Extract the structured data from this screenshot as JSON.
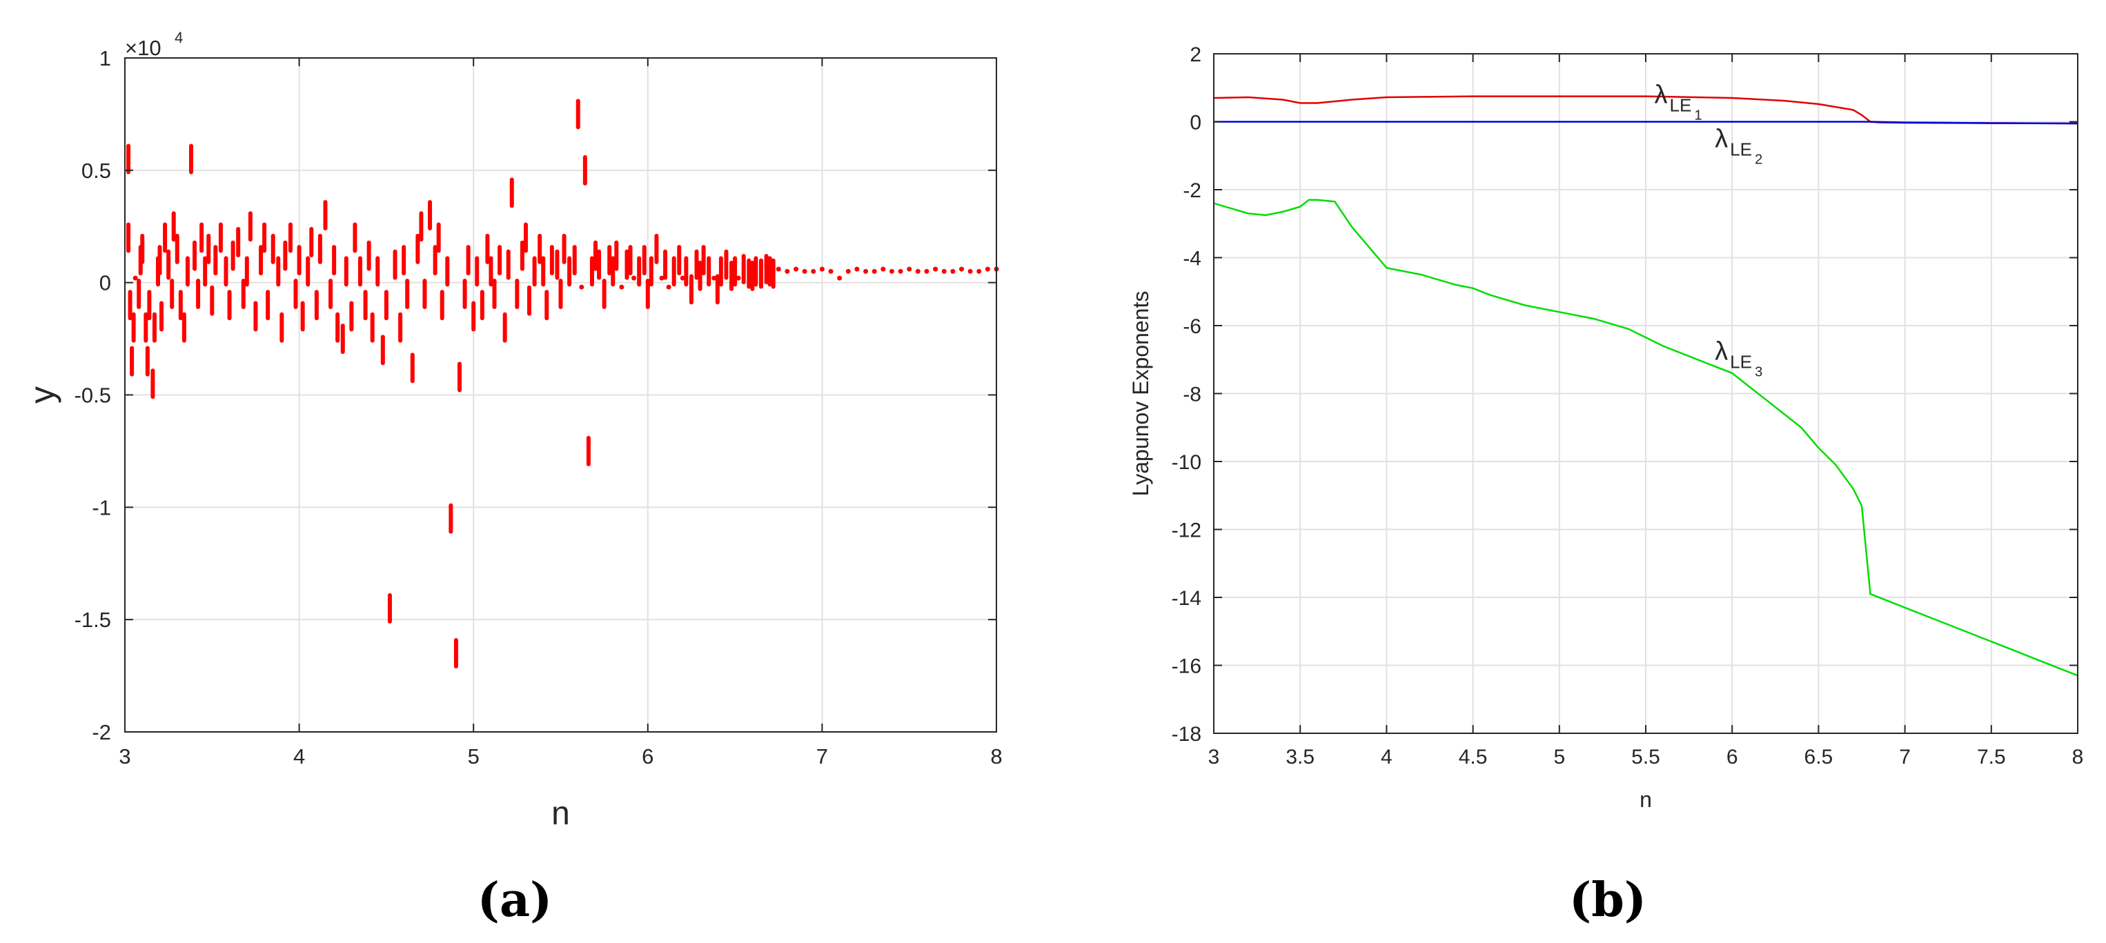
{
  "chart_data": [
    {
      "id": "a",
      "type": "scatter",
      "caption": "(a)",
      "xlabel": "n",
      "ylabel": "y",
      "exponent_label": "×10",
      "exponent_power": "4",
      "xlim": [
        3,
        8
      ],
      "ylim": [
        -2,
        1
      ],
      "xticks": [
        3,
        4,
        5,
        6,
        7,
        8
      ],
      "yticks": [
        -2,
        -1.5,
        -1,
        -0.5,
        0,
        0.5,
        1
      ],
      "ytick_labels": [
        "-2",
        "-1.5",
        "-1",
        "-0.5",
        "0",
        "0.5",
        "1"
      ],
      "grid": true,
      "color": "#ff0000",
      "points": [
        [
          3.02,
          0.55
        ],
        [
          3.02,
          0.2
        ],
        [
          3.03,
          -0.1
        ],
        [
          3.04,
          -0.35
        ],
        [
          3.05,
          -0.2
        ],
        [
          3.06,
          0.02
        ],
        [
          3.08,
          -0.05
        ],
        [
          3.09,
          0.1
        ],
        [
          3.1,
          0.15
        ],
        [
          3.12,
          -0.2
        ],
        [
          3.13,
          -0.35
        ],
        [
          3.14,
          -0.1
        ],
        [
          3.16,
          -0.45
        ],
        [
          3.17,
          -0.2
        ],
        [
          3.19,
          0.05
        ],
        [
          3.2,
          0.1
        ],
        [
          3.21,
          -0.15
        ],
        [
          3.23,
          0.2
        ],
        [
          3.25,
          0.08
        ],
        [
          3.27,
          -0.05
        ],
        [
          3.28,
          0.25
        ],
        [
          3.3,
          0.15
        ],
        [
          3.32,
          -0.1
        ],
        [
          3.34,
          -0.2
        ],
        [
          3.36,
          0.05
        ],
        [
          3.38,
          0.55
        ],
        [
          3.4,
          0.12
        ],
        [
          3.42,
          -0.05
        ],
        [
          3.44,
          0.2
        ],
        [
          3.46,
          0.05
        ],
        [
          3.48,
          0.15
        ],
        [
          3.5,
          -0.08
        ],
        [
          3.52,
          0.1
        ],
        [
          3.55,
          0.2
        ],
        [
          3.58,
          0.05
        ],
        [
          3.6,
          -0.1
        ],
        [
          3.62,
          0.12
        ],
        [
          3.65,
          0.18
        ],
        [
          3.68,
          -0.05
        ],
        [
          3.7,
          0.05
        ],
        [
          3.72,
          0.25
        ],
        [
          3.75,
          -0.15
        ],
        [
          3.78,
          0.1
        ],
        [
          3.8,
          0.2
        ],
        [
          3.82,
          -0.1
        ],
        [
          3.85,
          0.15
        ],
        [
          3.88,
          0.05
        ],
        [
          3.9,
          -0.2
        ],
        [
          3.92,
          0.12
        ],
        [
          3.95,
          0.2
        ],
        [
          3.98,
          -0.05
        ],
        [
          4.0,
          0.1
        ],
        [
          4.02,
          -0.15
        ],
        [
          4.05,
          0.05
        ],
        [
          4.07,
          0.18
        ],
        [
          4.1,
          -0.1
        ],
        [
          4.12,
          0.15
        ],
        [
          4.15,
          0.3
        ],
        [
          4.18,
          -0.05
        ],
        [
          4.2,
          0.1
        ],
        [
          4.22,
          -0.2
        ],
        [
          4.25,
          -0.25
        ],
        [
          4.27,
          0.05
        ],
        [
          4.3,
          -0.15
        ],
        [
          4.32,
          0.2
        ],
        [
          4.35,
          0.05
        ],
        [
          4.38,
          -0.1
        ],
        [
          4.4,
          0.12
        ],
        [
          4.42,
          -0.2
        ],
        [
          4.45,
          0.05
        ],
        [
          4.48,
          -0.3
        ],
        [
          4.5,
          -0.1
        ],
        [
          4.52,
          -1.45
        ],
        [
          4.55,
          0.08
        ],
        [
          4.58,
          -0.2
        ],
        [
          4.6,
          0.1
        ],
        [
          4.62,
          -0.05
        ],
        [
          4.65,
          -0.38
        ],
        [
          4.68,
          0.15
        ],
        [
          4.7,
          0.25
        ],
        [
          4.72,
          -0.05
        ],
        [
          4.75,
          0.3
        ],
        [
          4.78,
          0.1
        ],
        [
          4.8,
          0.2
        ],
        [
          4.82,
          -0.1
        ],
        [
          4.85,
          0.05
        ],
        [
          4.87,
          -1.05
        ],
        [
          4.9,
          -1.65
        ],
        [
          4.92,
          -0.42
        ],
        [
          4.95,
          -0.05
        ],
        [
          4.97,
          0.1
        ],
        [
          5.0,
          -0.15
        ],
        [
          5.02,
          0.05
        ],
        [
          5.05,
          -0.1
        ],
        [
          5.08,
          0.15
        ],
        [
          5.1,
          0.05
        ],
        [
          5.12,
          -0.05
        ],
        [
          5.15,
          0.1
        ],
        [
          5.18,
          -0.2
        ],
        [
          5.2,
          0.08
        ],
        [
          5.22,
          0.4
        ],
        [
          5.25,
          -0.05
        ],
        [
          5.28,
          0.12
        ],
        [
          5.3,
          0.2
        ],
        [
          5.32,
          -0.08
        ],
        [
          5.35,
          0.05
        ],
        [
          5.38,
          0.15
        ],
        [
          5.4,
          0.05
        ],
        [
          5.42,
          -0.1
        ],
        [
          5.45,
          0.1
        ],
        [
          5.48,
          0.08
        ],
        [
          5.5,
          -0.05
        ],
        [
          5.52,
          0.15
        ],
        [
          5.55,
          0.05
        ],
        [
          5.58,
          0.1
        ],
        [
          5.6,
          0.75
        ],
        [
          5.62,
          -0.02
        ],
        [
          5.64,
          0.5
        ],
        [
          5.66,
          -0.75
        ],
        [
          5.68,
          0.05
        ],
        [
          5.7,
          0.12
        ],
        [
          5.72,
          0.08
        ],
        [
          5.75,
          -0.05
        ],
        [
          5.78,
          0.1
        ],
        [
          5.8,
          0.05
        ],
        [
          5.82,
          0.12
        ],
        [
          5.85,
          -0.02
        ],
        [
          5.88,
          0.08
        ],
        [
          5.9,
          0.1
        ],
        [
          5.92,
          0.02
        ],
        [
          5.95,
          0.05
        ],
        [
          5.98,
          0.1
        ],
        [
          6.0,
          -0.05
        ],
        [
          6.02,
          0.05
        ],
        [
          6.05,
          0.15
        ],
        [
          6.08,
          0.02
        ],
        [
          6.1,
          0.08
        ],
        [
          6.12,
          -0.02
        ],
        [
          6.15,
          0.05
        ],
        [
          6.18,
          0.1
        ],
        [
          6.2,
          0.02
        ],
        [
          6.22,
          0.05
        ],
        [
          6.25,
          -0.03
        ],
        [
          6.28,
          0.08
        ],
        [
          6.3,
          0.03
        ],
        [
          6.32,
          0.1
        ],
        [
          6.35,
          0.05
        ],
        [
          6.38,
          0.02
        ],
        [
          6.4,
          -0.03
        ],
        [
          6.42,
          0.05
        ],
        [
          6.45,
          0.08
        ],
        [
          6.48,
          0.03
        ],
        [
          6.5,
          0.05
        ],
        [
          6.52,
          0.02
        ],
        [
          6.55,
          0.06
        ],
        [
          6.58,
          0.04
        ],
        [
          6.6,
          0.03
        ],
        [
          6.62,
          0.05
        ],
        [
          6.65,
          0.04
        ],
        [
          6.68,
          0.06
        ],
        [
          6.7,
          0.05
        ],
        [
          6.72,
          0.04
        ],
        [
          6.75,
          0.06
        ],
        [
          6.8,
          0.05
        ],
        [
          6.85,
          0.06
        ],
        [
          6.9,
          0.05
        ],
        [
          6.95,
          0.05
        ],
        [
          7.0,
          0.06
        ],
        [
          7.05,
          0.05
        ],
        [
          7.1,
          0.02
        ],
        [
          7.15,
          0.05
        ],
        [
          7.2,
          0.06
        ],
        [
          7.25,
          0.05
        ],
        [
          7.3,
          0.05
        ],
        [
          7.35,
          0.06
        ],
        [
          7.4,
          0.05
        ],
        [
          7.45,
          0.05
        ],
        [
          7.5,
          0.06
        ],
        [
          7.55,
          0.05
        ],
        [
          7.6,
          0.05
        ],
        [
          7.65,
          0.06
        ],
        [
          7.7,
          0.05
        ],
        [
          7.75,
          0.05
        ],
        [
          7.8,
          0.06
        ],
        [
          7.85,
          0.05
        ],
        [
          7.9,
          0.05
        ],
        [
          7.95,
          0.06
        ],
        [
          8.0,
          0.06
        ]
      ]
    },
    {
      "id": "b",
      "type": "line",
      "caption": "(b)",
      "xlabel": "n",
      "ylabel": "Lyapunov Exponents",
      "xlim": [
        3,
        8
      ],
      "ylim": [
        -18,
        2
      ],
      "xticks": [
        3,
        3.5,
        4,
        4.5,
        5,
        5.5,
        6,
        6.5,
        7,
        7.5,
        8
      ],
      "xtick_labels": [
        "3",
        "3.5",
        "4",
        "4.5",
        "5",
        "5.5",
        "6",
        "6.5",
        "7",
        "7.5",
        "8"
      ],
      "yticks": [
        -18,
        -16,
        -14,
        -12,
        -10,
        -8,
        -6,
        -4,
        -2,
        0,
        2
      ],
      "ytick_labels": [
        "-18",
        "-16",
        "-14",
        "-12",
        "-10",
        "-8",
        "-6",
        "-4",
        "-2",
        "0",
        "2"
      ],
      "grid": true,
      "series": [
        {
          "label_main": "λ",
          "label_sub": "LE",
          "label_subsub": "1",
          "color": "#e00000",
          "x": [
            3.0,
            3.2,
            3.4,
            3.5,
            3.6,
            3.8,
            4.0,
            4.5,
            5.0,
            5.5,
            6.0,
            6.3,
            6.5,
            6.7,
            6.75,
            6.8,
            6.85,
            7.0,
            8.0
          ],
          "y": [
            0.7,
            0.72,
            0.65,
            0.55,
            0.55,
            0.65,
            0.72,
            0.75,
            0.75,
            0.75,
            0.7,
            0.62,
            0.52,
            0.35,
            0.2,
            0.0,
            -0.02,
            -0.03,
            -0.05
          ]
        },
        {
          "label_main": "λ",
          "label_sub": "LE",
          "label_subsub": "2",
          "color": "#0000e0",
          "x": [
            3.0,
            4.0,
            5.0,
            6.0,
            6.8,
            7.0,
            7.5,
            8.0
          ],
          "y": [
            0.0,
            0.0,
            0.0,
            0.0,
            0.0,
            -0.02,
            -0.04,
            -0.05
          ]
        },
        {
          "label_main": "λ",
          "label_sub": "LE",
          "label_subsub": "3",
          "color": "#00dd00",
          "x": [
            3.0,
            3.1,
            3.2,
            3.3,
            3.4,
            3.5,
            3.55,
            3.6,
            3.7,
            3.8,
            3.9,
            4.0,
            4.2,
            4.4,
            4.5,
            4.6,
            4.8,
            5.0,
            5.2,
            5.4,
            5.6,
            5.8,
            6.0,
            6.1,
            6.2,
            6.3,
            6.4,
            6.5,
            6.6,
            6.7,
            6.75,
            6.8,
            7.0,
            7.5,
            8.0
          ],
          "y": [
            -2.4,
            -2.55,
            -2.7,
            -2.75,
            -2.65,
            -2.5,
            -2.3,
            -2.3,
            -2.35,
            -3.1,
            -3.7,
            -4.3,
            -4.5,
            -4.8,
            -4.9,
            -5.1,
            -5.4,
            -5.6,
            -5.8,
            -6.1,
            -6.6,
            -7.0,
            -7.4,
            -7.8,
            -8.2,
            -8.6,
            -9.0,
            -9.6,
            -10.1,
            -10.8,
            -11.3,
            -13.9,
            -14.3,
            -15.3,
            -16.3
          ]
        }
      ],
      "label_positions": [
        [
          5.55,
          0.55
        ],
        [
          5.9,
          -0.75
        ],
        [
          5.9,
          -7.0
        ]
      ]
    }
  ]
}
